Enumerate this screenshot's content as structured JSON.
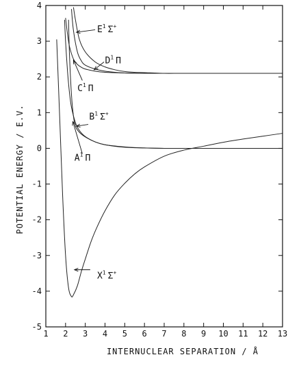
{
  "chart_data": {
    "type": "line",
    "title": "",
    "xlabel": "INTERNUCLEAR SEPARATION / Å",
    "ylabel": "POTENTIAL ENERGY / E.V.",
    "xlim": [
      1,
      13
    ],
    "ylim": [
      -5,
      4
    ],
    "xticks": [
      "1",
      "2",
      "3",
      "4",
      "5",
      "6",
      "7",
      "8",
      "9",
      "10",
      "11",
      "12",
      "13"
    ],
    "yticks": [
      "-5",
      "-4",
      "-3",
      "-2",
      "-1",
      "0",
      "1",
      "2",
      "3",
      "4"
    ],
    "grid": false,
    "legend": "none",
    "series": [
      {
        "name": "X¹Σ⁺",
        "label_main": "X",
        "label_sup1": "1",
        "label_sym": "Σ",
        "label_sup2": "+",
        "x": [
          1.55,
          1.7,
          1.85,
          2.0,
          2.15,
          2.3,
          2.4,
          2.6,
          2.8,
          3.0,
          3.3,
          3.6,
          4.0,
          4.5,
          5.0,
          5.5,
          6.0,
          7.0,
          8.0,
          9.0,
          10.0,
          11.0,
          12.0,
          13.0
        ],
        "y": [
          3.05,
          0.9,
          -1.3,
          -3.0,
          -3.9,
          -4.15,
          -4.1,
          -3.85,
          -3.45,
          -3.1,
          -2.6,
          -2.2,
          -1.75,
          -1.3,
          -0.98,
          -0.72,
          -0.52,
          -0.22,
          -0.05,
          0.06,
          0.17,
          0.26,
          0.34,
          0.42
        ]
      },
      {
        "name": "A¹Π",
        "label_main": "A",
        "label_sup1": "1",
        "label_sym": "Π",
        "label_sup2": "",
        "x": [
          1.95,
          2.0,
          2.1,
          2.2,
          2.3,
          2.5,
          2.7,
          3.0,
          3.5,
          4.0,
          5.0,
          6.0,
          7.0,
          8.0,
          10.0,
          13.0
        ],
        "y": [
          3.6,
          3.0,
          2.15,
          1.55,
          1.15,
          0.72,
          0.5,
          0.33,
          0.18,
          0.1,
          0.04,
          0.01,
          0.0,
          0.0,
          0.0,
          0.0
        ]
      },
      {
        "name": "B¹Σ⁺",
        "label_main": "B",
        "label_sup1": "1",
        "label_sym": "Σ",
        "label_sup2": "+",
        "x": [
          2.15,
          2.2,
          2.3,
          2.4,
          2.5,
          2.7,
          3.0,
          3.5,
          4.0,
          5.0,
          6.0,
          7.0,
          8.0,
          10.0,
          13.0
        ],
        "y": [
          3.6,
          2.6,
          1.5,
          0.9,
          0.62,
          0.45,
          0.32,
          0.18,
          0.1,
          0.03,
          0.01,
          0.0,
          0.0,
          0.0,
          0.0
        ]
      },
      {
        "name": "C¹Π",
        "label_main": "C",
        "label_sup1": "1",
        "label_sym": "Π",
        "label_sup2": "",
        "x": [
          2.0,
          2.1,
          2.2,
          2.4,
          2.6,
          2.8,
          3.0,
          3.5,
          4.0,
          5.0,
          6.0,
          8.0,
          13.0
        ],
        "y": [
          3.65,
          3.2,
          2.85,
          2.5,
          2.35,
          2.27,
          2.22,
          2.16,
          2.13,
          2.11,
          2.1,
          2.1,
          2.1
        ]
      },
      {
        "name": "D¹Π",
        "label_main": "D",
        "label_sup1": "1",
        "label_sym": "Π",
        "label_sup2": "",
        "x": [
          2.3,
          2.4,
          2.6,
          2.8,
          3.0,
          3.5,
          4.0,
          4.5,
          5.0,
          6.0,
          8.0,
          13.0
        ],
        "y": [
          3.9,
          3.3,
          2.7,
          2.45,
          2.33,
          2.22,
          2.16,
          2.13,
          2.11,
          2.1,
          2.1,
          2.1
        ]
      },
      {
        "name": "E¹Σ⁺",
        "label_main": "E",
        "label_sup1": "1",
        "label_sym": "Σ",
        "label_sup2": "+",
        "x": [
          2.4,
          2.5,
          2.7,
          3.0,
          3.5,
          4.0,
          4.5,
          5.0,
          5.5,
          6.0,
          7.0,
          8.0,
          13.0
        ],
        "y": [
          3.95,
          3.6,
          3.05,
          2.7,
          2.42,
          2.28,
          2.2,
          2.15,
          2.13,
          2.12,
          2.1,
          2.1,
          2.1
        ]
      }
    ]
  }
}
